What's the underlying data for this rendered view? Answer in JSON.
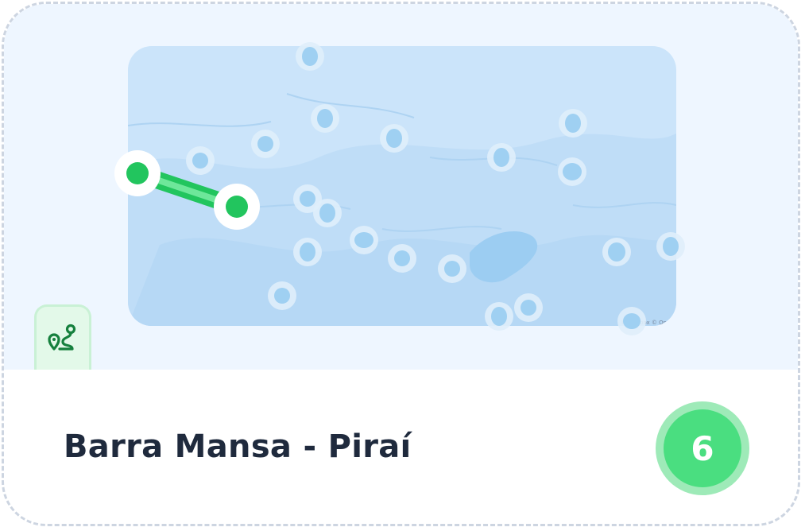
{
  "route": {
    "name": "Barra Mansa - Piraí",
    "count": "6"
  },
  "map": {
    "attribution": "© Mapbox © OpenStreetMap"
  },
  "icons": {
    "route_icon": "route-icon"
  },
  "colors": {
    "accent_green": "#22c55e",
    "badge_green": "#4ade80",
    "map_water": "#c8e3fb",
    "pin_blue": "#9fd0f2",
    "title_text": "#1f2a3d"
  }
}
